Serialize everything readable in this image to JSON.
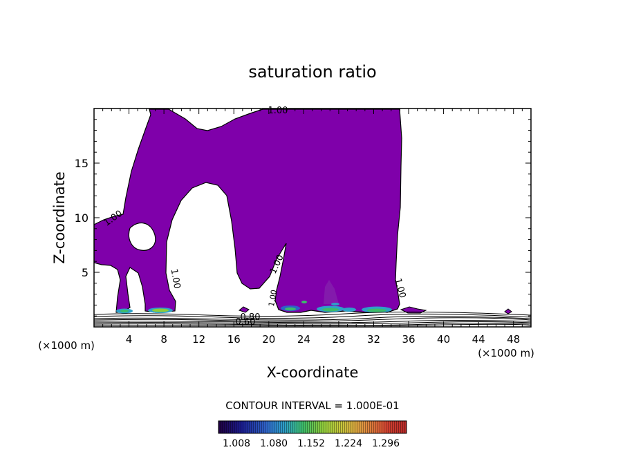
{
  "chart_data": {
    "type": "contour",
    "title": "saturation ratio",
    "xlabel": "X-coordinate",
    "ylabel": "Z-coordinate",
    "x_unit_label": "(×1000 m)",
    "x_unit_label_right": "(×1000 m)",
    "xlim": [
      0,
      50
    ],
    "ylim": [
      0,
      20
    ],
    "x_ticks": [
      4,
      8,
      12,
      16,
      20,
      24,
      28,
      32,
      36,
      40,
      44,
      48
    ],
    "y_ticks": [
      5,
      10,
      15
    ],
    "contour_labels": [
      "1.00",
      "1.00",
      "1.00",
      "1.00",
      "1.00",
      "1.00",
      "0.80",
      "0.60"
    ],
    "contour_interval_text": "CONTOUR INTERVAL = 1.000E-01",
    "colorbar": {
      "tick_labels": [
        "1.008",
        "1.080",
        "1.152",
        "1.224",
        "1.296"
      ],
      "colors": [
        "#200040",
        "#1a1a8c",
        "#2f62c8",
        "#2ea0c8",
        "#3cbc6a",
        "#8ccc3c",
        "#c8c83c",
        "#e09040",
        "#d04030",
        "#b82828"
      ]
    },
    "fill_color": "#7f00aa",
    "grid": false
  }
}
